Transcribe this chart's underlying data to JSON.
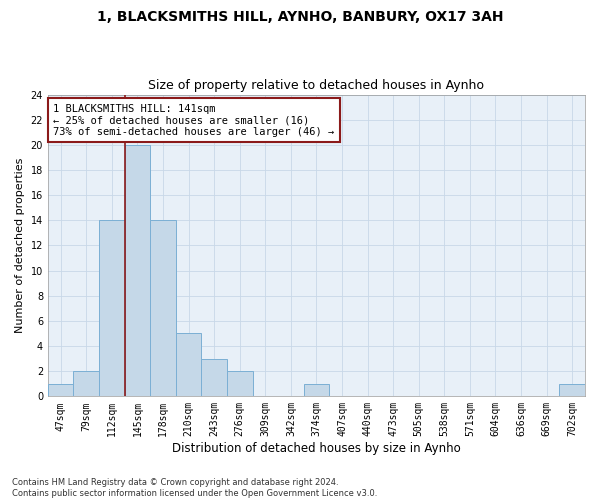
{
  "title_line1": "1, BLACKSMITHS HILL, AYNHO, BANBURY, OX17 3AH",
  "title_line2": "Size of property relative to detached houses in Aynho",
  "xlabel": "Distribution of detached houses by size in Aynho",
  "ylabel": "Number of detached properties",
  "bar_labels": [
    "47sqm",
    "79sqm",
    "112sqm",
    "145sqm",
    "178sqm",
    "210sqm",
    "243sqm",
    "276sqm",
    "309sqm",
    "342sqm",
    "374sqm",
    "407sqm",
    "440sqm",
    "473sqm",
    "505sqm",
    "538sqm",
    "571sqm",
    "604sqm",
    "636sqm",
    "669sqm",
    "702sqm"
  ],
  "bar_values": [
    1,
    2,
    14,
    20,
    14,
    5,
    3,
    2,
    0,
    0,
    1,
    0,
    0,
    0,
    0,
    0,
    0,
    0,
    0,
    0,
    1
  ],
  "bar_color": "#C5D8E8",
  "bar_edgecolor": "#7BAFD4",
  "ylim": [
    0,
    24
  ],
  "yticks": [
    0,
    2,
    4,
    6,
    8,
    10,
    12,
    14,
    16,
    18,
    20,
    22,
    24
  ],
  "vline_index": 3,
  "vline_color": "#8B1A1A",
  "annotation_line1": "1 BLACKSMITHS HILL: 141sqm",
  "annotation_line2": "← 25% of detached houses are smaller (16)",
  "annotation_line3": "73% of semi-detached houses are larger (46) →",
  "annotation_box_color": "#8B1A1A",
  "footnote": "Contains HM Land Registry data © Crown copyright and database right 2024.\nContains public sector information licensed under the Open Government Licence v3.0.",
  "grid_color": "#C8D8E8",
  "background_color": "#E8F0F8",
  "title1_fontsize": 10,
  "title2_fontsize": 9,
  "ylabel_fontsize": 8,
  "xlabel_fontsize": 8.5,
  "tick_fontsize": 7,
  "annot_fontsize": 7.5,
  "footnote_fontsize": 6
}
